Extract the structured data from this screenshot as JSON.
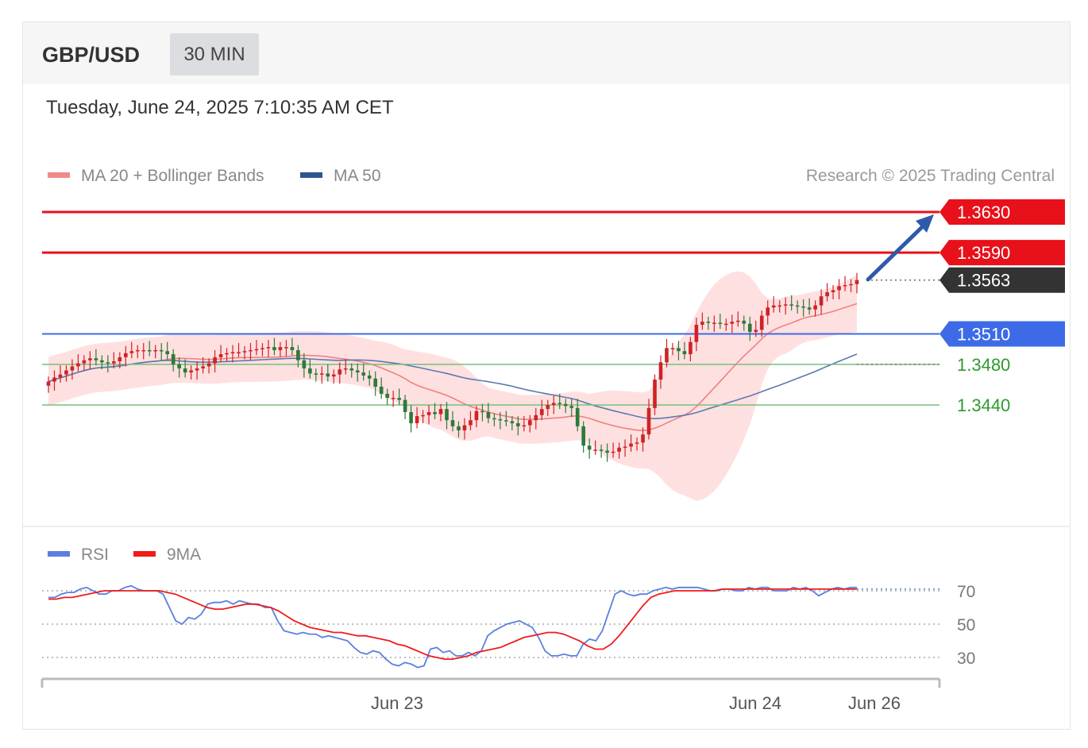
{
  "header": {
    "symbol": "GBP/USD",
    "timeframe": "30 MIN",
    "datetime": "Tuesday, June 24, 2025 7:10:35 AM CET"
  },
  "legend": {
    "ma20_bb": "MA 20 + Bollinger Bands",
    "ma50": "MA 50",
    "credit": "Research © 2025 Trading Central",
    "rsi": "RSI",
    "rsi_ma": "9MA"
  },
  "colors": {
    "resistance": "#e8101a",
    "support": "#73c17a",
    "pivot": "#3d6be8",
    "current": "#333333",
    "up_candle": "#d02226",
    "down_candle": "#2d7a3a",
    "ma20": "#f08080",
    "bollinger_fill": "#ffd6d6",
    "ma50": "#5a7ab0",
    "rsi_line": "#5c7fe0",
    "rsi_ma_line": "#ee1c1c",
    "arrow": "#2f5aa8"
  },
  "chart_data": [
    {
      "type": "line",
      "title": "",
      "xlabel": "",
      "ylabel": "",
      "x_ticks": [
        "Jun 23",
        "Jun 24",
        "Jun 26"
      ],
      "ylim": [
        1.3385,
        1.3645
      ],
      "levels": [
        {
          "value": 1.363,
          "label": "1.3630",
          "kind": "resistance"
        },
        {
          "value": 1.359,
          "label": "1.3590",
          "kind": "resistance"
        },
        {
          "value": 1.3563,
          "label": "1.3563",
          "kind": "current"
        },
        {
          "value": 1.351,
          "label": "1.3510",
          "kind": "pivot"
        },
        {
          "value": 1.348,
          "label": "1.3480",
          "kind": "support"
        },
        {
          "value": 1.344,
          "label": "1.3440",
          "kind": "support"
        }
      ],
      "candles_close": [
        1.3463,
        1.3467,
        1.347,
        1.3474,
        1.3478,
        1.3481,
        1.3484,
        1.3486,
        1.3484,
        1.3482,
        1.3481,
        1.3483,
        1.3487,
        1.3491,
        1.3493,
        1.3494,
        1.3494,
        1.3493,
        1.3494,
        1.3493,
        1.349,
        1.348,
        1.3476,
        1.3472,
        1.3474,
        1.3476,
        1.3478,
        1.3481,
        1.3487,
        1.349,
        1.3491,
        1.3492,
        1.3492,
        1.3493,
        1.3494,
        1.3495,
        1.3496,
        1.3497,
        1.3494,
        1.3497,
        1.3497,
        1.3494,
        1.3484,
        1.3476,
        1.3471,
        1.347,
        1.3471,
        1.3468,
        1.347,
        1.3475,
        1.3476,
        1.3474,
        1.3472,
        1.3469,
        1.3466,
        1.3458,
        1.3451,
        1.3447,
        1.3447,
        1.3445,
        1.3433,
        1.3422,
        1.3429,
        1.343,
        1.3433,
        1.3431,
        1.3436,
        1.3425,
        1.3419,
        1.3415,
        1.342,
        1.3425,
        1.3434,
        1.3433,
        1.3427,
        1.3426,
        1.3425,
        1.3424,
        1.3422,
        1.3419,
        1.342,
        1.3425,
        1.343,
        1.3436,
        1.344,
        1.3442,
        1.3441,
        1.3439,
        1.3437,
        1.3419,
        1.34,
        1.3396,
        1.3396,
        1.3395,
        1.3393,
        1.3394,
        1.3398,
        1.3399,
        1.3402,
        1.3403,
        1.3411,
        1.3437,
        1.3465,
        1.3482,
        1.3496,
        1.3496,
        1.3493,
        1.349,
        1.3502,
        1.3519,
        1.3522,
        1.3521,
        1.3521,
        1.352,
        1.352,
        1.3522,
        1.3523,
        1.352,
        1.3512,
        1.3514,
        1.3528,
        1.3536,
        1.3538,
        1.3538,
        1.3539,
        1.3538,
        1.3537,
        1.3536,
        1.3534,
        1.3538,
        1.3547,
        1.3551,
        1.3553,
        1.3557,
        1.3558,
        1.3559,
        1.3563
      ],
      "rsi_panel": {
        "series": [
          {
            "name": "RSI",
            "values": [
              66,
              66,
              68,
              69,
              69,
              71,
              72,
              70,
              68,
              68,
              70,
              70,
              72,
              73,
              71,
              70,
              70,
              70,
              68,
              60,
              52,
              50,
              54,
              53,
              56,
              62,
              63,
              63,
              64,
              62,
              64,
              63,
              62,
              62,
              60,
              60,
              52,
              46,
              45,
              44,
              45,
              44,
              44,
              42,
              43,
              42,
              41,
              40,
              36,
              33,
              32,
              34,
              33,
              29,
              26,
              25,
              27,
              26,
              24,
              25,
              35,
              36,
              33,
              34,
              31,
              31,
              33,
              31,
              34,
              43,
              46,
              48,
              50,
              51,
              52,
              50,
              48,
              42,
              34,
              31,
              31,
              32,
              31,
              31,
              38,
              41,
              40,
              46,
              57,
              68,
              70,
              68,
              67,
              68,
              68,
              70,
              71,
              72,
              71,
              72,
              72,
              72,
              72,
              71,
              70,
              70,
              71,
              71,
              70,
              70,
              72,
              71,
              72,
              72,
              70,
              70,
              70,
              72,
              71,
              72,
              70,
              67,
              69,
              71,
              72,
              71,
              72,
              72
            ]
          },
          {
            "name": "9MA",
            "values": [
              65,
              65,
              66,
              66,
              67,
              68,
              69,
              70,
              70,
              70,
              70,
              70,
              70,
              70,
              70,
              69,
              68,
              66,
              64,
              62,
              60,
              59,
              59,
              60,
              61,
              62,
              62,
              61,
              60,
              58,
              55,
              52,
              50,
              48,
              47,
              46,
              45,
              45,
              44,
              43,
              43,
              42,
              41,
              40,
              38,
              37,
              35,
              33,
              31,
              30,
              29,
              29,
              30,
              31,
              33,
              34,
              35,
              36,
              38,
              40,
              42,
              43,
              44,
              45,
              45,
              44,
              42,
              40,
              37,
              35,
              35,
              38,
              43,
              49,
              55,
              61,
              66,
              68,
              69,
              70,
              70,
              70,
              70,
              70,
              70,
              71,
              71,
              71,
              71,
              71,
              71,
              71,
              71,
              71,
              71,
              71,
              71,
              71,
              71,
              71,
              71,
              71,
              71
            ]
          }
        ],
        "y_ticks": [
          "70",
          "50",
          "30"
        ],
        "ylim": [
          10,
          85
        ]
      }
    }
  ]
}
